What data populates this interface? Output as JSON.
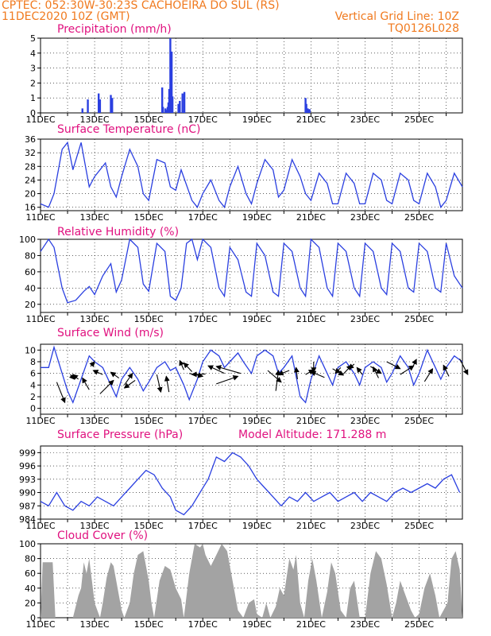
{
  "header": {
    "line1_left": "CPTEC:  052:30W-30:23S  CACHOEIRA DO SUL (RS)",
    "line2_left": "11DEC2020 10Z (GMT)",
    "line2_right": "Vertical Grid Line: 10Z",
    "line3_right": "TQ0126L028",
    "model_altitude": "Model Altitude: 171.288 m"
  },
  "x_labels": [
    "11DEC",
    "13DEC",
    "15DEC",
    "17DEC",
    "19DEC",
    "21DEC",
    "23DEC",
    "25DEC"
  ],
  "colors": {
    "series": "#2a3fe0",
    "cloud": "#a3a3a3",
    "title": "#e0117f",
    "header": "#f07a1f"
  },
  "chart_data": [
    {
      "type": "bar",
      "title": "Precipitation (mm/h)",
      "ylim": [
        0,
        5
      ],
      "yticks": [
        "0",
        "1",
        "2",
        "3",
        "4",
        "5"
      ],
      "x_unit": "days since 11DEC",
      "x": [
        1.55,
        1.75,
        2.15,
        2.2,
        2.6,
        2.65,
        4.5,
        4.53,
        4.62,
        4.66,
        4.7,
        4.73,
        4.76,
        4.8,
        4.85,
        4.88,
        5.1,
        5.15,
        5.25,
        5.32,
        9.8,
        9.83,
        9.88,
        9.95
      ],
      "values": [
        0.3,
        0.9,
        1.3,
        0.9,
        1.2,
        1.0,
        1.7,
        0.4,
        0.3,
        0.2,
        0.4,
        0.7,
        1.6,
        5.0,
        4.1,
        1.1,
        0.6,
        0.8,
        1.3,
        1.4,
        1.0,
        0.6,
        0.3,
        0.25
      ]
    },
    {
      "type": "line",
      "title": "Surface Temperature (nC)",
      "ylim": [
        15,
        36
      ],
      "yticks": [
        "16",
        "20",
        "24",
        "28",
        "32",
        "36"
      ],
      "x": [
        0,
        0.3,
        0.5,
        0.8,
        1,
        1.2,
        1.5,
        1.8,
        2,
        2.4,
        2.6,
        2.8,
        3,
        3.3,
        3.6,
        3.8,
        4,
        4.3,
        4.6,
        4.8,
        5,
        5.2,
        5.6,
        5.8,
        6,
        6.3,
        6.6,
        6.8,
        7,
        7.3,
        7.6,
        7.8,
        8,
        8.3,
        8.6,
        8.8,
        9,
        9.3,
        9.6,
        9.8,
        10,
        10.3,
        10.6,
        10.8,
        11,
        11.3,
        11.6,
        11.8,
        12,
        12.3,
        12.6,
        12.8,
        13,
        13.3,
        13.6,
        13.8,
        14,
        14.3,
        14.6,
        14.8,
        15,
        15.3,
        15.6
      ],
      "values": [
        17,
        16,
        20,
        33,
        35,
        27,
        35,
        22,
        25,
        29,
        22,
        19,
        25,
        33,
        28,
        20,
        18,
        30,
        29,
        22,
        21,
        27,
        18,
        16,
        20,
        24,
        18,
        16,
        22,
        28,
        20,
        17,
        23,
        30,
        27,
        19,
        21,
        30,
        25,
        20,
        18,
        26,
        23,
        17,
        17,
        26,
        23,
        17,
        17,
        26,
        24,
        18,
        17,
        26,
        24,
        18,
        17,
        26,
        22,
        16,
        18,
        26,
        22
      ]
    },
    {
      "type": "line",
      "title": "Relative Humidity (%)",
      "ylim": [
        10,
        100
      ],
      "yticks": [
        "20",
        "40",
        "60",
        "80",
        "100"
      ],
      "x": [
        0,
        0.3,
        0.5,
        0.8,
        1,
        1.3,
        1.6,
        1.8,
        2,
        2.3,
        2.6,
        2.8,
        3,
        3.3,
        3.6,
        3.8,
        4,
        4.3,
        4.6,
        4.8,
        5,
        5.2,
        5.4,
        5.6,
        5.8,
        6,
        6.3,
        6.6,
        6.8,
        7,
        7.3,
        7.6,
        7.8,
        8,
        8.3,
        8.6,
        8.8,
        9,
        9.3,
        9.6,
        9.8,
        10,
        10.3,
        10.6,
        10.8,
        11,
        11.3,
        11.6,
        11.8,
        12,
        12.3,
        12.6,
        12.8,
        13,
        13.3,
        13.6,
        13.8,
        14,
        14.3,
        14.6,
        14.8,
        15,
        15.3,
        15.6
      ],
      "values": [
        85,
        100,
        90,
        40,
        22,
        25,
        36,
        42,
        32,
        55,
        70,
        35,
        50,
        100,
        90,
        45,
        36,
        95,
        85,
        30,
        25,
        40,
        95,
        100,
        75,
        100,
        90,
        40,
        30,
        90,
        75,
        35,
        30,
        95,
        80,
        35,
        30,
        95,
        85,
        40,
        30,
        100,
        90,
        40,
        30,
        95,
        85,
        40,
        30,
        95,
        85,
        40,
        32,
        95,
        85,
        40,
        35,
        95,
        85,
        40,
        35,
        95,
        55,
        40
      ]
    },
    {
      "type": "line",
      "title": "Surface Wind (m/s)",
      "ylim": [
        -1,
        11
      ],
      "yticks": [
        "0",
        "2",
        "4",
        "6",
        "8",
        "10"
      ],
      "x": [
        0,
        0.3,
        0.5,
        0.8,
        1,
        1.2,
        1.5,
        1.8,
        2,
        2.3,
        2.6,
        2.8,
        3,
        3.3,
        3.6,
        3.8,
        4,
        4.3,
        4.6,
        4.8,
        5,
        5.3,
        5.5,
        5.8,
        6,
        6.3,
        6.6,
        6.8,
        7,
        7.3,
        7.5,
        7.8,
        8,
        8.3,
        8.6,
        8.8,
        9,
        9.3,
        9.6,
        9.8,
        10,
        10.3,
        10.6,
        10.8,
        11,
        11.3,
        11.6,
        11.8,
        12,
        12.3,
        12.6,
        12.8,
        13,
        13.3,
        13.6,
        13.8,
        14,
        14.3,
        14.6,
        14.8,
        15,
        15.3,
        15.6
      ],
      "values": [
        7,
        7,
        10.5,
        6,
        3,
        1,
        5,
        9,
        8,
        7,
        4,
        2,
        5,
        7,
        5,
        3,
        4.5,
        7,
        8,
        6.5,
        7,
        4,
        1.5,
        5,
        8,
        10,
        9,
        7,
        8,
        9.5,
        8,
        6,
        9,
        10,
        9,
        6,
        7,
        9,
        2,
        1,
        5,
        9,
        6,
        4,
        7,
        8,
        6,
        4,
        7,
        8,
        7,
        4.5,
        6,
        9,
        7,
        4,
        6,
        10,
        7,
        5,
        7,
        9,
        8
      ]
    },
    {
      "type": "line",
      "title": "Surface Pressure (hPa)",
      "ylim": [
        984,
        1000.5
      ],
      "yticks": [
        "984",
        "987",
        "990",
        "993",
        "996",
        "999"
      ],
      "x": [
        0,
        0.3,
        0.6,
        0.9,
        1.2,
        1.5,
        1.8,
        2.1,
        2.4,
        2.7,
        3,
        3.3,
        3.6,
        3.9,
        4.2,
        4.5,
        4.8,
        5,
        5.3,
        5.6,
        5.9,
        6.2,
        6.5,
        6.8,
        7.1,
        7.4,
        7.7,
        8,
        8.3,
        8.6,
        8.9,
        9.2,
        9.5,
        9.8,
        10.1,
        10.4,
        10.7,
        11,
        11.3,
        11.6,
        11.9,
        12.2,
        12.5,
        12.8,
        13.1,
        13.4,
        13.7,
        14,
        14.3,
        14.6,
        14.9,
        15.2,
        15.5
      ],
      "values": [
        988,
        987,
        990,
        987,
        986,
        988,
        987,
        989,
        988,
        987,
        989,
        991,
        993,
        995,
        994,
        991,
        989,
        986,
        985,
        987,
        990,
        993,
        998,
        997,
        999,
        998,
        996,
        993,
        991,
        989,
        987,
        989,
        988,
        990,
        988,
        989,
        990,
        988,
        989,
        990,
        988,
        990,
        989,
        988,
        990,
        991,
        990,
        991,
        992,
        991,
        993,
        994,
        990
      ]
    },
    {
      "type": "area",
      "title": "Cloud Cover (%)",
      "ylim": [
        0,
        100
      ],
      "yticks": [
        "0",
        "20",
        "40",
        "60",
        "80",
        "100"
      ],
      "x": [
        0,
        0.08,
        0.45,
        0.55,
        0.9,
        1.2,
        1.4,
        1.5,
        1.6,
        1.7,
        1.8,
        1.9,
        2.0,
        2.2,
        2.3,
        2.45,
        2.6,
        2.7,
        2.85,
        3.0,
        3.1,
        3.3,
        3.45,
        3.6,
        3.8,
        4.0,
        4.1,
        4.2,
        4.4,
        4.6,
        4.8,
        5.0,
        5.2,
        5.3,
        5.5,
        5.7,
        5.9,
        6.0,
        6.1,
        6.3,
        6.5,
        6.7,
        6.9,
        7.1,
        7.3,
        7.5,
        7.7,
        7.9,
        8.0,
        8.2,
        8.35,
        8.5,
        8.7,
        8.85,
        9.0,
        9.2,
        9.35,
        9.45,
        9.6,
        9.75,
        9.9,
        10.05,
        10.2,
        10.4,
        10.6,
        10.75,
        10.9,
        11.1,
        11.3,
        11.45,
        11.6,
        11.8,
        12.0,
        12.2,
        12.4,
        12.6,
        12.8,
        13.0,
        13.15,
        13.3,
        13.5,
        13.7,
        13.85,
        14.0,
        14.2,
        14.4,
        14.6,
        14.75,
        14.9,
        15.05,
        15.2,
        15.35,
        15.5,
        15.6
      ],
      "values": [
        0,
        75,
        75,
        0,
        0,
        0,
        30,
        40,
        75,
        60,
        80,
        50,
        20,
        0,
        20,
        55,
        75,
        70,
        40,
        10,
        0,
        20,
        60,
        85,
        90,
        50,
        20,
        0,
        50,
        70,
        65,
        40,
        25,
        0,
        60,
        100,
        95,
        100,
        85,
        70,
        85,
        100,
        90,
        50,
        10,
        0,
        20,
        25,
        5,
        0,
        20,
        0,
        15,
        40,
        30,
        80,
        65,
        85,
        20,
        0,
        50,
        80,
        50,
        0,
        35,
        75,
        60,
        10,
        0,
        40,
        50,
        0,
        0,
        60,
        90,
        80,
        45,
        0,
        20,
        50,
        30,
        10,
        0,
        5,
        40,
        60,
        30,
        0,
        10,
        20,
        80,
        90,
        65,
        0
      ]
    }
  ]
}
